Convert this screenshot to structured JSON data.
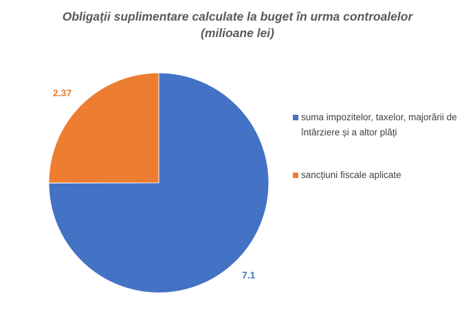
{
  "chart_data": {
    "type": "pie",
    "title": "Obligații suplimentare calculate la buget în urma controalelor",
    "subtitle": "(milioane lei)",
    "categories": [
      "suma impozitelor, taxelor, majorării de întârziere și a altor plăți",
      "sancțiuni fiscale aplicate"
    ],
    "values": [
      7.1,
      2.37
    ],
    "value_labels": [
      "7.1",
      "2.37"
    ],
    "colors": [
      "#4472C4",
      "#ED7D31"
    ],
    "legend_position": "right"
  }
}
